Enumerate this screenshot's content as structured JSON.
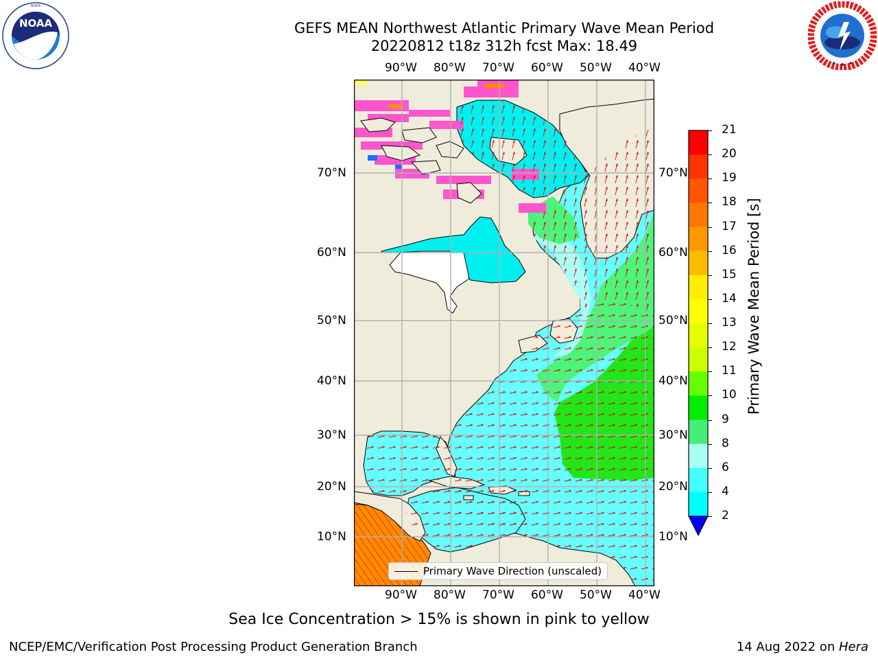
{
  "title": {
    "line1": "GEFS MEAN Northwest Atlantic Primary Wave Mean Period",
    "line2": "20220812 t18z 312h fcst   Max: 18.49"
  },
  "logos": {
    "noaa": {
      "icon": "noaa-logo",
      "text": "NOAA",
      "ring_text": "NATIONAL OCEANIC AND ATMOSPHERIC ADMINISTRATION · U.S. DEPARTMENT OF COMMERCE"
    },
    "nws": {
      "icon": "nws-logo",
      "ring_text": "NATIONAL WEATHER SERVICE"
    }
  },
  "map": {
    "lon_labels": [
      "90°W",
      "80°W",
      "70°W",
      "60°W",
      "50°W",
      "40°W"
    ],
    "lat_labels": [
      "10°N",
      "20°N",
      "30°N",
      "40°N",
      "50°N",
      "60°N",
      "70°N"
    ],
    "legend_label": "Primary Wave Direction (unscaled)",
    "colors": {
      "land": "#efecdc",
      "ocean_short": "#00f0f0",
      "ocean_mid": "#66ffff",
      "ocean_light": "#aafff4",
      "ocean_green_light": "#4cf47a",
      "ocean_green": "#22e61a",
      "ocean_long": "#ff8c00",
      "arrow": "#e00000",
      "ice": "#ff55cc",
      "gridline": "#b0b0b0"
    }
  },
  "colorbar": {
    "label": "Primary Wave Mean Period [s]",
    "ticks": [
      "21",
      "20",
      "19",
      "18",
      "17",
      "16",
      "15",
      "14",
      "13",
      "12",
      "11",
      "10",
      "9",
      "8",
      "6",
      "4",
      "2"
    ],
    "colors": [
      "#ff0000",
      "#ff2200",
      "#ff4400",
      "#ff6600",
      "#ff8800",
      "#ffaa00",
      "#ffcc00",
      "#ffee00",
      "#ffff00",
      "#e6ff00",
      "#c8ff00",
      "#8cff00",
      "#44ff00",
      "#00e600",
      "#1fec3c",
      "#4cf47a",
      "#aafff4",
      "#66ffff",
      "#33ffff",
      "#00ffff",
      "#0088ff",
      "#0000ff"
    ],
    "extend_color": "#0000ff"
  },
  "footer": {
    "note": "Sea Ice Concentration > 15% is shown in pink to yellow",
    "credit_left": "NCEP/EMC/Verification Post Processing Product Generation Branch",
    "credit_right_date": "14 Aug 2022 on ",
    "credit_right_host": "Hera"
  }
}
